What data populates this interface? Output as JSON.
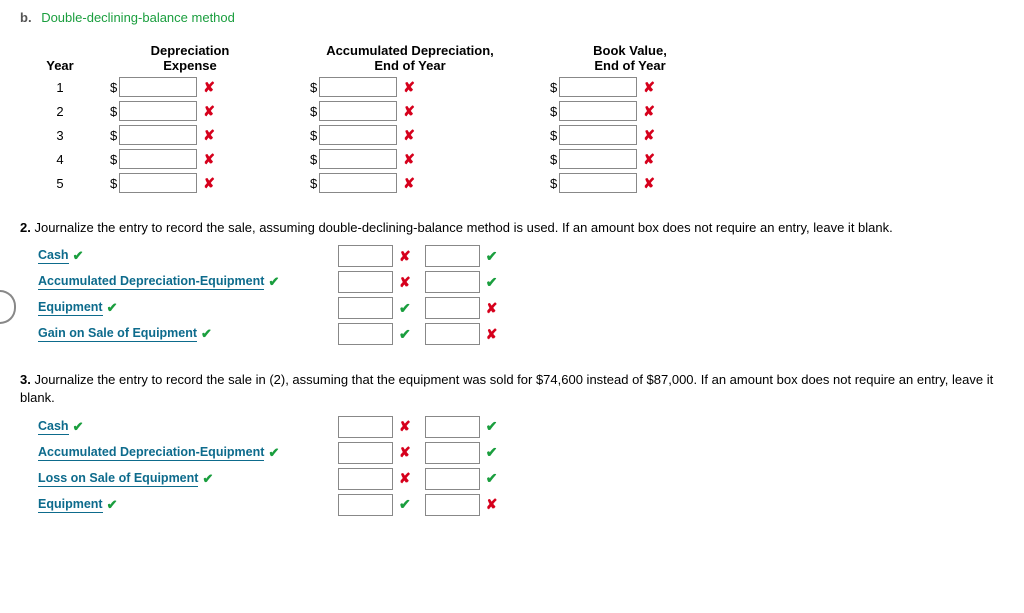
{
  "section_b": {
    "label": "b.",
    "title": "Double-declining-balance method"
  },
  "dep_table": {
    "headers": {
      "year": "Year",
      "dep_expense_l1": "Depreciation",
      "dep_expense_l2": "Expense",
      "accum_l1": "Accumulated Depreciation,",
      "accum_l2": "End of Year",
      "book_l1": "Book Value,",
      "book_l2": "End of Year"
    },
    "rows": [
      {
        "year": "1"
      },
      {
        "year": "2"
      },
      {
        "year": "3"
      },
      {
        "year": "4"
      },
      {
        "year": "5"
      }
    ],
    "currency": "$",
    "mark_wrong": "✘"
  },
  "q2": {
    "num": "2.",
    "text": "Journalize the entry to record the sale, assuming double-declining-balance method is used. If an amount box does not require an entry, leave it blank.",
    "rows": [
      {
        "acct": "Cash",
        "m1": "x",
        "m2": "c"
      },
      {
        "acct": "Accumulated Depreciation-Equipment",
        "m1": "x",
        "m2": "c"
      },
      {
        "acct": "Equipment",
        "m1": "c",
        "m2": "x"
      },
      {
        "acct": "Gain on Sale of Equipment",
        "m1": "c",
        "m2": "x"
      }
    ]
  },
  "q3": {
    "num": "3.",
    "text": "Journalize the entry to record the sale in (2), assuming that the equipment was sold for $74,600 instead of $87,000. If an amount box does not require an entry, leave it blank.",
    "rows": [
      {
        "acct": "Cash",
        "m1": "x",
        "m2": "c"
      },
      {
        "acct": "Accumulated Depreciation-Equipment",
        "m1": "x",
        "m2": "c"
      },
      {
        "acct": "Loss on Sale of Equipment",
        "m1": "x",
        "m2": "c"
      },
      {
        "acct": "Equipment",
        "m1": "c",
        "m2": "x"
      }
    ]
  },
  "marks": {
    "x": "✘",
    "c": "✔"
  }
}
